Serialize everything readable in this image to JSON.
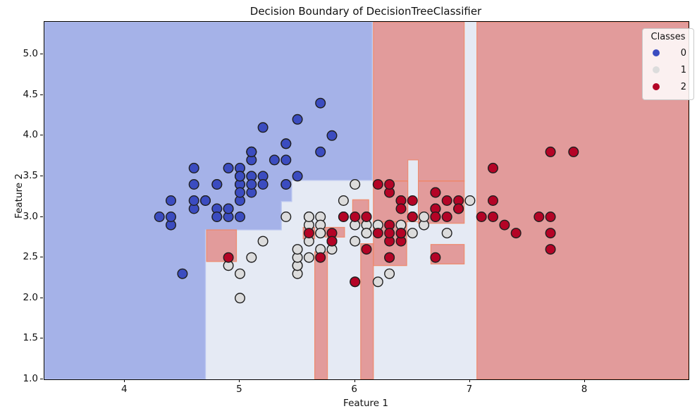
{
  "title": "Decision Boundary of DecisionTreeClassifier",
  "axes": {
    "xlabel": "Feature 1",
    "ylabel": "Feature 2",
    "xlim": [
      3.3,
      8.9
    ],
    "ylim": [
      1.0,
      5.4
    ],
    "xticks": [
      4,
      5,
      6,
      7,
      8
    ],
    "yticks": [
      1.0,
      1.5,
      2.0,
      2.5,
      3.0,
      3.5,
      4.0,
      4.5,
      5.0
    ]
  },
  "legend": {
    "title": "Classes",
    "items": [
      {
        "label": "0",
        "color": "#3b4cc0"
      },
      {
        "label": "1",
        "color": "#dcdcdc"
      },
      {
        "label": "2",
        "color": "#b40426"
      }
    ]
  },
  "colors": {
    "region_class0": "#a5b2e8",
    "region_class1": "#e5eaf4",
    "region_class2": "#e29b9b",
    "region_edge_red": "rgba(240,130,95,0.85)",
    "region_edge_blue": "rgba(186,198,240,1)",
    "point_edge": "#1f1f1f"
  },
  "chart_data": {
    "type": "scatter",
    "title": "Decision Boundary of DecisionTreeClassifier",
    "xlabel": "Feature 1",
    "ylabel": "Feature 2",
    "xlim": [
      3.3,
      8.9
    ],
    "ylim": [
      1.0,
      5.4
    ],
    "grid": false,
    "legend_position": "upper right",
    "regions": {
      "base_class": 1,
      "class0_polygon": [
        [
          3.3,
          5.4
        ],
        [
          6.15,
          5.4
        ],
        [
          6.15,
          3.45
        ],
        [
          5.45,
          3.45
        ],
        [
          5.45,
          3.19
        ],
        [
          5.36,
          3.19
        ],
        [
          5.36,
          2.84
        ],
        [
          4.7,
          2.84
        ],
        [
          4.7,
          1.0
        ],
        [
          3.3,
          1.0
        ]
      ],
      "class2_rects": [
        [
          7.06,
          8.9,
          1.0,
          5.4
        ],
        [
          6.16,
          6.95,
          3.44,
          5.4
        ],
        [
          6.16,
          6.46,
          2.94,
          3.44
        ],
        [
          6.55,
          6.95,
          2.92,
          3.44
        ],
        [
          6.16,
          6.45,
          2.4,
          2.94
        ],
        [
          6.05,
          6.16,
          1.0,
          2.67
        ],
        [
          5.65,
          5.76,
          1.0,
          2.57
        ],
        [
          5.98,
          6.12,
          2.92,
          3.21
        ],
        [
          5.55,
          5.65,
          2.73,
          2.87
        ],
        [
          5.74,
          5.91,
          2.75,
          2.87
        ],
        [
          4.71,
          4.97,
          2.45,
          2.84
        ],
        [
          6.66,
          6.95,
          2.42,
          2.66
        ]
      ],
      "class1_rects": [
        [
          6.46,
          6.55,
          2.94,
          3.7
        ]
      ]
    },
    "series": [
      {
        "name": "0",
        "color": "#3b4cc0",
        "points": [
          [
            5.1,
            3.5
          ],
          [
            4.9,
            3.0
          ],
          [
            4.7,
            3.2
          ],
          [
            4.6,
            3.1
          ],
          [
            5.0,
            3.6
          ],
          [
            5.4,
            3.9
          ],
          [
            4.6,
            3.4
          ],
          [
            5.0,
            3.4
          ],
          [
            4.4,
            2.9
          ],
          [
            4.9,
            3.1
          ],
          [
            5.4,
            3.7
          ],
          [
            4.8,
            3.4
          ],
          [
            4.8,
            3.0
          ],
          [
            4.3,
            3.0
          ],
          [
            5.8,
            4.0
          ],
          [
            5.7,
            4.4
          ],
          [
            5.4,
            3.9
          ],
          [
            5.1,
            3.5
          ],
          [
            5.7,
            3.8
          ],
          [
            5.1,
            3.8
          ],
          [
            5.4,
            3.4
          ],
          [
            5.1,
            3.7
          ],
          [
            4.6,
            3.6
          ],
          [
            5.1,
            3.3
          ],
          [
            4.8,
            3.4
          ],
          [
            5.0,
            3.0
          ],
          [
            5.0,
            3.4
          ],
          [
            5.2,
            3.5
          ],
          [
            5.2,
            3.4
          ],
          [
            4.7,
            3.2
          ],
          [
            4.8,
            3.1
          ],
          [
            5.4,
            3.4
          ],
          [
            5.2,
            4.1
          ],
          [
            5.5,
            4.2
          ],
          [
            4.9,
            3.1
          ],
          [
            5.0,
            3.2
          ],
          [
            5.5,
            3.5
          ],
          [
            4.9,
            3.6
          ],
          [
            4.4,
            3.0
          ],
          [
            5.1,
            3.4
          ],
          [
            5.0,
            3.5
          ],
          [
            4.5,
            2.3
          ],
          [
            4.4,
            3.2
          ],
          [
            5.0,
            3.5
          ],
          [
            5.1,
            3.8
          ],
          [
            4.8,
            3.0
          ],
          [
            5.1,
            3.8
          ],
          [
            4.6,
            3.2
          ],
          [
            5.3,
            3.7
          ],
          [
            5.0,
            3.3
          ]
        ]
      },
      {
        "name": "1",
        "color": "#dcdcdc",
        "points": [
          [
            7.0,
            3.2
          ],
          [
            6.4,
            3.2
          ],
          [
            6.9,
            3.1
          ],
          [
            5.5,
            2.3
          ],
          [
            6.5,
            2.8
          ],
          [
            5.7,
            2.8
          ],
          [
            6.3,
            3.3
          ],
          [
            4.9,
            2.4
          ],
          [
            6.6,
            2.9
          ],
          [
            5.2,
            2.7
          ],
          [
            5.0,
            2.0
          ],
          [
            5.9,
            3.0
          ],
          [
            6.0,
            2.2
          ],
          [
            6.1,
            2.9
          ],
          [
            5.6,
            2.9
          ],
          [
            6.7,
            3.1
          ],
          [
            5.6,
            3.0
          ],
          [
            5.8,
            2.7
          ],
          [
            6.2,
            2.2
          ],
          [
            5.6,
            2.5
          ],
          [
            5.9,
            3.2
          ],
          [
            6.1,
            2.8
          ],
          [
            6.3,
            2.5
          ],
          [
            6.1,
            2.8
          ],
          [
            6.4,
            2.9
          ],
          [
            6.6,
            3.0
          ],
          [
            6.8,
            2.8
          ],
          [
            6.7,
            3.0
          ],
          [
            6.0,
            2.9
          ],
          [
            5.7,
            2.6
          ],
          [
            5.5,
            2.4
          ],
          [
            5.5,
            2.4
          ],
          [
            5.8,
            2.7
          ],
          [
            6.0,
            2.7
          ],
          [
            5.4,
            3.0
          ],
          [
            6.0,
            3.4
          ],
          [
            6.7,
            3.1
          ],
          [
            6.3,
            2.3
          ],
          [
            5.6,
            3.0
          ],
          [
            5.5,
            2.5
          ],
          [
            5.5,
            2.6
          ],
          [
            6.1,
            3.0
          ],
          [
            5.8,
            2.6
          ],
          [
            5.0,
            2.3
          ],
          [
            5.6,
            2.7
          ],
          [
            5.7,
            3.0
          ],
          [
            5.7,
            2.9
          ],
          [
            6.2,
            2.9
          ],
          [
            5.1,
            2.5
          ],
          [
            5.7,
            2.8
          ]
        ]
      },
      {
        "name": "2",
        "color": "#b40426",
        "points": [
          [
            6.3,
            3.3
          ],
          [
            5.8,
            2.7
          ],
          [
            7.1,
            3.0
          ],
          [
            6.3,
            2.9
          ],
          [
            6.5,
            3.0
          ],
          [
            7.6,
            3.0
          ],
          [
            4.9,
            2.5
          ],
          [
            7.3,
            2.9
          ],
          [
            6.7,
            2.5
          ],
          [
            7.2,
            3.6
          ],
          [
            6.5,
            3.2
          ],
          [
            6.4,
            2.7
          ],
          [
            6.8,
            3.0
          ],
          [
            5.7,
            2.5
          ],
          [
            5.8,
            2.8
          ],
          [
            6.4,
            3.2
          ],
          [
            6.5,
            3.0
          ],
          [
            7.7,
            3.8
          ],
          [
            7.7,
            2.6
          ],
          [
            6.0,
            2.2
          ],
          [
            6.9,
            3.2
          ],
          [
            5.6,
            2.8
          ],
          [
            7.7,
            2.8
          ],
          [
            6.3,
            2.7
          ],
          [
            6.7,
            3.3
          ],
          [
            7.2,
            3.2
          ],
          [
            6.2,
            2.8
          ],
          [
            6.1,
            3.0
          ],
          [
            6.4,
            2.8
          ],
          [
            7.2,
            3.0
          ],
          [
            7.4,
            2.8
          ],
          [
            7.9,
            3.8
          ],
          [
            6.4,
            2.8
          ],
          [
            6.3,
            2.8
          ],
          [
            6.1,
            2.6
          ],
          [
            7.7,
            3.0
          ],
          [
            6.3,
            3.4
          ],
          [
            6.4,
            3.1
          ],
          [
            6.0,
            3.0
          ],
          [
            6.9,
            3.1
          ],
          [
            6.7,
            3.1
          ],
          [
            6.9,
            3.1
          ],
          [
            5.8,
            2.7
          ],
          [
            6.8,
            3.2
          ],
          [
            6.7,
            3.3
          ],
          [
            6.7,
            3.0
          ],
          [
            6.3,
            2.5
          ],
          [
            6.5,
            3.0
          ],
          [
            6.2,
            3.4
          ],
          [
            5.9,
            3.0
          ]
        ]
      }
    ]
  }
}
